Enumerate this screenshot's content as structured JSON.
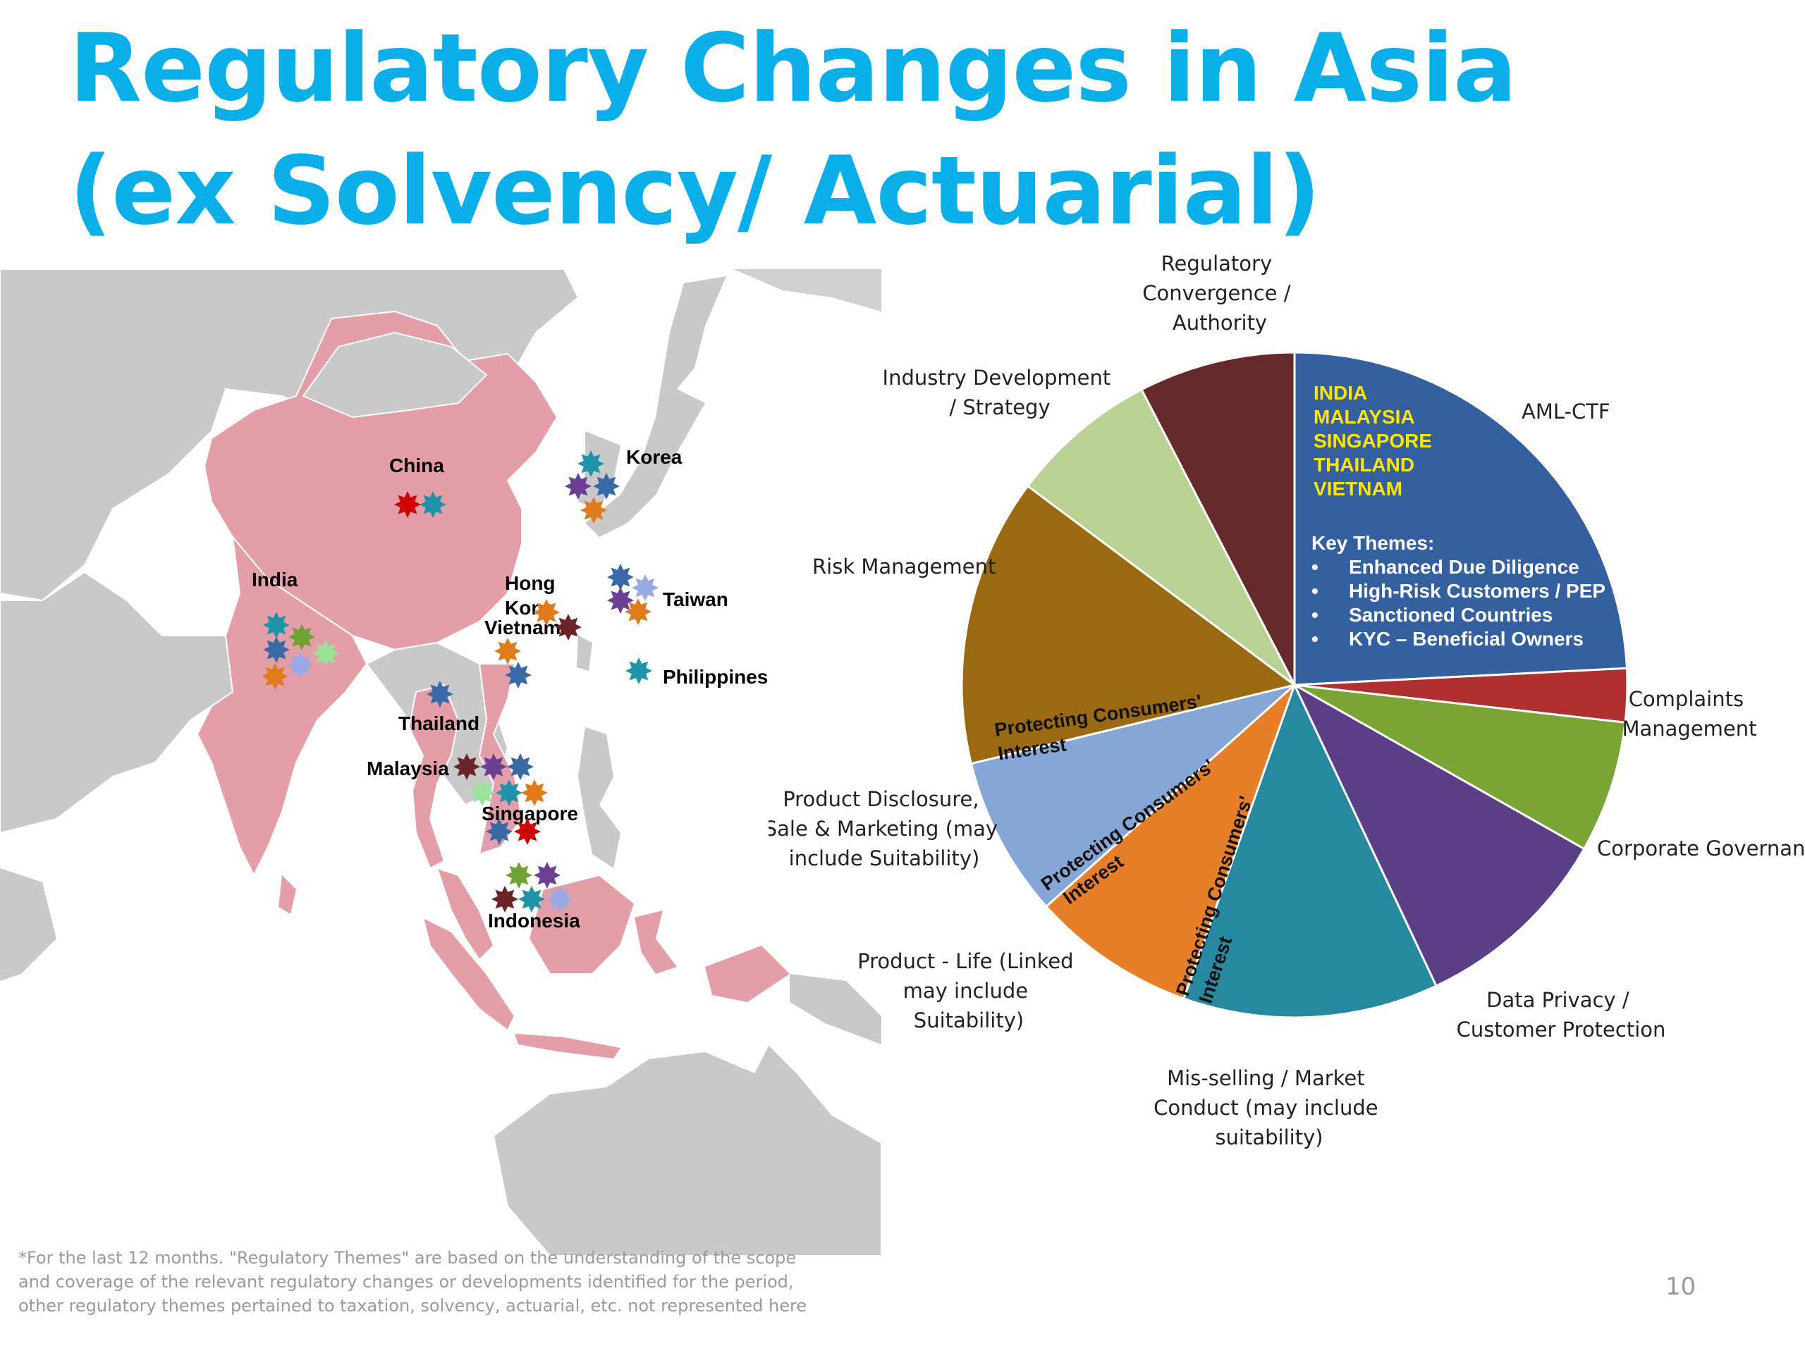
{
  "title": {
    "line1": "Regulatory Changes in Asia",
    "line2": "(ex Solvency/ Actuarial)"
  },
  "map": {
    "labels": {
      "china": "China",
      "korea": "Korea",
      "india": "India",
      "hongkong1": "Hong",
      "hongkong2": "Kong",
      "vietnam": "Vietnam",
      "taiwan": "Taiwan",
      "philippines": "Philippines",
      "thailand": "Thailand",
      "malaysia": "Malaysia",
      "singapore": "Singapore",
      "indonesia": "Indonesia"
    },
    "theme_colors": {
      "regulatory_convergence": "#6b2528",
      "aml_ctf": "#3a69a7",
      "complaints": "#b3272d",
      "corporate_governance": "#6fa233",
      "data_privacy": "#6b3f92",
      "mis_selling": "#1f93a8",
      "protecting": "#e07b1c",
      "product_disclosure": "#9aa9e6",
      "industry_dev": "#b8d98f",
      "bright_red": "#d00000",
      "light_green": "#9be39b"
    }
  },
  "chart_data": {
    "type": "pie",
    "title": "",
    "slices": [
      {
        "label": "AML-CTF",
        "value": 24.2,
        "color": "#3560a0"
      },
      {
        "label": "Complaints Management",
        "value": 2.6,
        "color": "#b03030"
      },
      {
        "label": "Corporate Governance",
        "value": 6.4,
        "color": "#7aa535"
      },
      {
        "label": "Data Privacy / Customer Protection",
        "value": 9.8,
        "color": "#5b3f86"
      },
      {
        "label": "Mis-selling / Market Conduct (may include suitability)",
        "value": 12.4,
        "color": "#26899f"
      },
      {
        "label": "Product - Life (Linked may include Suitability)",
        "value": 8.0,
        "color": "#e67f28"
      },
      {
        "label": "Product Disclosure, Sale & Marketing (may include Suitability)",
        "value": 7.8,
        "color": "#86a6d6"
      },
      {
        "label": "Risk Management",
        "value": 14.0,
        "color": "#9a6a12"
      },
      {
        "label": "Industry Development / Strategy",
        "value": 7.2,
        "color": "#b9d294"
      },
      {
        "label": "Regulatory Convergence / Authority",
        "value": 7.6,
        "color": "#662a2c"
      }
    ],
    "outside_labels": {
      "reg1": "Regulatory",
      "reg2": "Convergence /",
      "reg3": "Authority",
      "ind1": "Industry Development",
      "ind2": "/ Strategy",
      "aml": "AML-CTF",
      "risk": "Risk Management",
      "comp1": "Complaints",
      "comp2": "Management",
      "pd1": "Product Disclosure,",
      "pd2": "Sale & Marketing (may",
      "pd3": "include Suitability)",
      "cg": "Corporate Governance",
      "pl1": "Product - Life (Linked",
      "pl2": "may include",
      "pl3": "Suitability)",
      "dp1": "Data Privacy /",
      "dp2": "Customer Protection",
      "ms1": "Mis-selling / Market",
      "ms2": "Conduct (may include",
      "ms3": "suitability)"
    },
    "inside_labels": {
      "pc_a1": "Protecting Consumers'",
      "pc_a2": "Interest",
      "pc_b1": "Protecting Consumers'",
      "pc_b2": "Interest",
      "pc_c1": "Protecting Consumers'",
      "pc_c2": "Interest"
    },
    "aml_callout": {
      "countries": [
        "INDIA",
        "MALAYSIA",
        "SINGAPORE",
        "THAILAND",
        "VIETNAM"
      ],
      "themes_title": "Key Themes:",
      "themes": [
        "Enhanced Due Diligence",
        "High-Risk Customers / PEP",
        "Sanctioned Countries",
        "KYC – Beneficial Owners"
      ],
      "bullet": "•"
    }
  },
  "footnote": {
    "line1": "*For the last 12 months. \"Regulatory Themes\" are based on the understanding of the scope",
    "line2": "and coverage of the relevant regulatory changes or developments identified for the period,",
    "line3": "other regulatory themes pertained to taxation, solvency, actuarial, etc. not represented here"
  },
  "page_number": "10"
}
